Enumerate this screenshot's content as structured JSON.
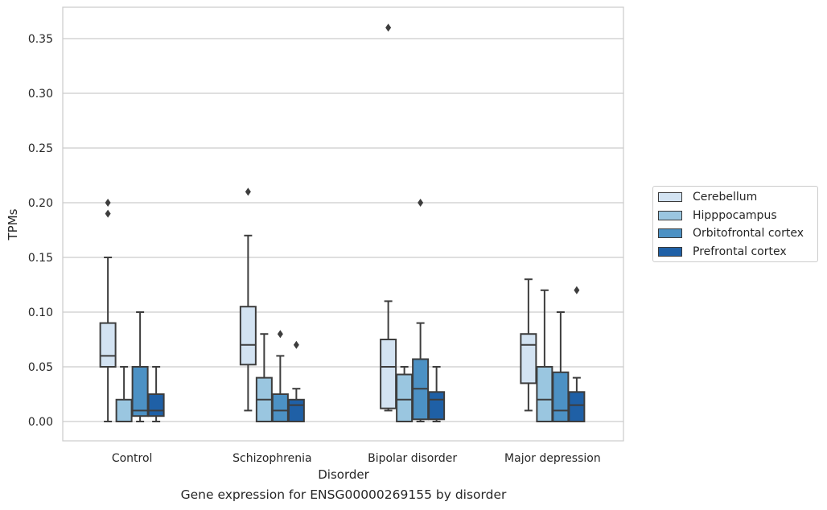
{
  "chart_data": {
    "type": "box",
    "title": "",
    "caption": "Gene expression for ENSG00000269155 by disorder",
    "xlabel": "Disorder",
    "ylabel": "TPMs",
    "ylim": [
      -0.018,
      0.379
    ],
    "yticks": [
      "0.00",
      "0.05",
      "0.10",
      "0.15",
      "0.20",
      "0.25",
      "0.30",
      "0.35"
    ],
    "grid": "horizontal",
    "legend_position": "right",
    "categories": [
      "Control",
      "Schizophrenia",
      "Bipolar disorder",
      "Major depression"
    ],
    "series": [
      {
        "name": "Cerebellum",
        "color": "#d3e3f2",
        "boxes": [
          {
            "whisker_low": 0.0,
            "q1": 0.05,
            "median": 0.06,
            "q3": 0.09,
            "whisker_high": 0.15,
            "outliers": [
              0.19,
              0.2
            ]
          },
          {
            "whisker_low": 0.01,
            "q1": 0.052,
            "median": 0.07,
            "q3": 0.105,
            "whisker_high": 0.17,
            "outliers": [
              0.21
            ]
          },
          {
            "whisker_low": 0.01,
            "q1": 0.012,
            "median": 0.05,
            "q3": 0.075,
            "whisker_high": 0.11,
            "outliers": [
              0.36
            ]
          },
          {
            "whisker_low": 0.01,
            "q1": 0.035,
            "median": 0.07,
            "q3": 0.08,
            "whisker_high": 0.13,
            "outliers": []
          }
        ]
      },
      {
        "name": "Hipppocampus",
        "color": "#9ac6e0",
        "boxes": [
          {
            "whisker_low": 0.0,
            "q1": 0.0,
            "median": 0.0,
            "q3": 0.02,
            "whisker_high": 0.05,
            "outliers": []
          },
          {
            "whisker_low": 0.0,
            "q1": 0.0,
            "median": 0.02,
            "q3": 0.04,
            "whisker_high": 0.08,
            "outliers": []
          },
          {
            "whisker_low": 0.0,
            "q1": 0.0,
            "median": 0.02,
            "q3": 0.043,
            "whisker_high": 0.05,
            "outliers": []
          },
          {
            "whisker_low": 0.0,
            "q1": 0.0,
            "median": 0.02,
            "q3": 0.05,
            "whisker_high": 0.12,
            "outliers": []
          }
        ]
      },
      {
        "name": "Orbitofrontal cortex",
        "color": "#4c91c4",
        "boxes": [
          {
            "whisker_low": 0.0,
            "q1": 0.005,
            "median": 0.01,
            "q3": 0.05,
            "whisker_high": 0.1,
            "outliers": []
          },
          {
            "whisker_low": 0.0,
            "q1": 0.0,
            "median": 0.01,
            "q3": 0.025,
            "whisker_high": 0.06,
            "outliers": [
              0.08
            ]
          },
          {
            "whisker_low": 0.0,
            "q1": 0.002,
            "median": 0.03,
            "q3": 0.057,
            "whisker_high": 0.09,
            "outliers": [
              0.2
            ]
          },
          {
            "whisker_low": 0.0,
            "q1": 0.0,
            "median": 0.01,
            "q3": 0.045,
            "whisker_high": 0.1,
            "outliers": []
          }
        ]
      },
      {
        "name": "Prefrontal cortex",
        "color": "#1f60a6",
        "boxes": [
          {
            "whisker_low": 0.0,
            "q1": 0.005,
            "median": 0.01,
            "q3": 0.025,
            "whisker_high": 0.05,
            "outliers": []
          },
          {
            "whisker_low": 0.0,
            "q1": 0.0,
            "median": 0.015,
            "q3": 0.02,
            "whisker_high": 0.03,
            "outliers": [
              0.07
            ]
          },
          {
            "whisker_low": 0.0,
            "q1": 0.002,
            "median": 0.02,
            "q3": 0.027,
            "whisker_high": 0.05,
            "outliers": []
          },
          {
            "whisker_low": 0.0,
            "q1": 0.0,
            "median": 0.015,
            "q3": 0.027,
            "whisker_high": 0.04,
            "outliers": [
              0.12
            ]
          }
        ]
      }
    ]
  }
}
